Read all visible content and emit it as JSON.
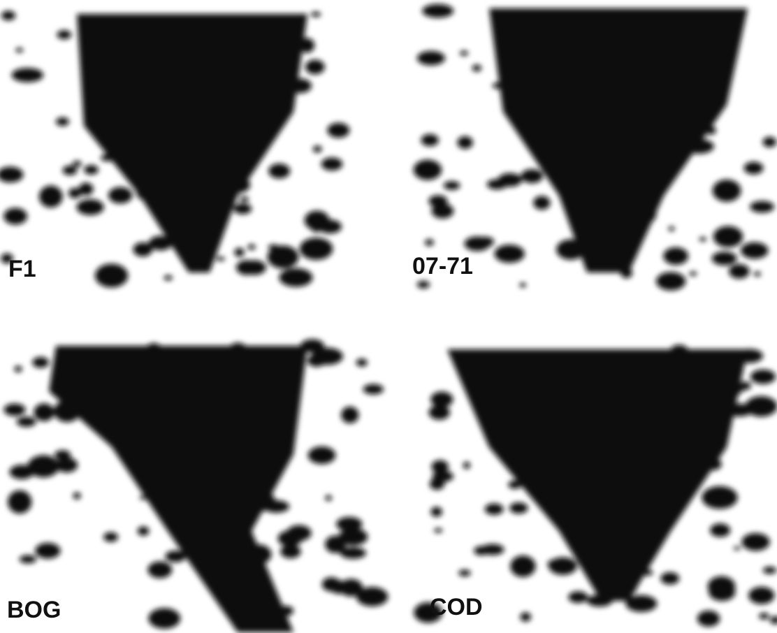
{
  "panels": [
    {
      "label": "F1"
    },
    {
      "label": "07-71"
    },
    {
      "label": "BOG"
    },
    {
      "label": "COD"
    }
  ]
}
